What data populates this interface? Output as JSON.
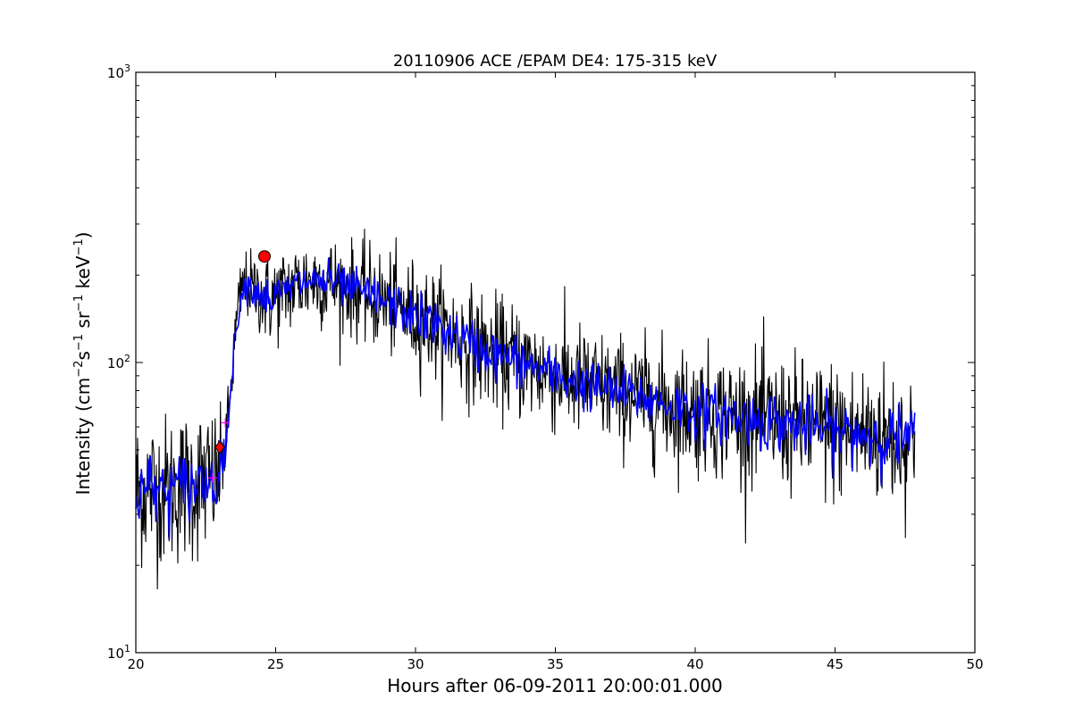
{
  "chart_data": {
    "type": "line",
    "title": "20110906 ACE /EPAM DE4: 175-315 keV",
    "xlabel": "Hours after 06-09-2011 20:00:01.000",
    "ylabel": {
      "prefix": "Intensity (cm",
      "parts": [
        {
          "base": "",
          "sup": "−2"
        },
        {
          "base": "s",
          "sup": "−1"
        },
        {
          "base": " sr",
          "sup": "−1"
        },
        {
          "base": " keV",
          "sup": "−1"
        }
      ],
      "suffix": ")"
    },
    "xlim": [
      20,
      50
    ],
    "ylim": [
      10,
      1000
    ],
    "yscale": "log",
    "grid": false,
    "x_ticks": [
      20,
      25,
      30,
      35,
      40,
      45,
      50
    ],
    "x_tick_labels": [
      "20",
      "25",
      "30",
      "35",
      "40",
      "45",
      "50"
    ],
    "y_major_ticks": [
      {
        "value": 10,
        "base": "10",
        "exp": "1"
      },
      {
        "value": 100,
        "base": "10",
        "exp": "2"
      },
      {
        "value": 1000,
        "base": "10",
        "exp": "3"
      }
    ],
    "series": [
      {
        "role": "raw",
        "color": "#000000",
        "x_range": [
          20.0,
          47.85
        ],
        "x": [
          20.0,
          20.5,
          21.0,
          21.5,
          22.0,
          22.5,
          22.9,
          23.0,
          23.1,
          23.2,
          23.3,
          23.4,
          23.5,
          23.6,
          23.7,
          23.8,
          24.0,
          24.2,
          24.4,
          24.6,
          24.8,
          25.0,
          25.5,
          26.0,
          26.5,
          27.0,
          27.5,
          28.0,
          28.5,
          29.0,
          29.5,
          30.0,
          30.5,
          31.0,
          31.5,
          32.0,
          32.5,
          33.0,
          33.5,
          34.0,
          34.5,
          35.0,
          35.5,
          36.0,
          36.5,
          37.0,
          37.5,
          38.0,
          38.5,
          39.0,
          39.5,
          40.0,
          40.5,
          41.0,
          41.5,
          42.0,
          42.5,
          43.0,
          43.5,
          44.0,
          44.5,
          45.0,
          45.5,
          46.0,
          46.5,
          47.0,
          47.5,
          47.85
        ],
        "y": [
          36,
          37,
          36,
          37,
          38,
          39,
          40,
          42,
          46,
          52,
          62,
          80,
          105,
          135,
          160,
          180,
          185,
          180,
          175,
          168,
          165,
          168,
          180,
          190,
          192,
          188,
          182,
          175,
          168,
          160,
          152,
          145,
          138,
          130,
          122,
          115,
          110,
          105,
          102,
          98,
          94,
          90,
          87,
          85,
          82,
          80,
          78,
          76,
          74,
          72,
          70,
          68,
          67,
          66,
          65,
          64,
          63,
          62,
          61,
          60,
          59,
          58,
          57,
          57,
          56,
          55,
          55,
          55
        ],
        "scatter_factor": [
          1.35,
          1.35,
          1.35,
          1.35,
          1.35,
          1.35,
          1.3,
          1.25,
          1.2,
          1.15,
          1.15,
          1.15,
          1.15,
          1.15,
          1.15,
          1.15,
          1.15,
          1.15,
          1.18,
          1.2,
          1.2,
          1.2,
          1.2,
          1.2,
          1.2,
          1.2,
          1.2,
          1.2,
          1.22,
          1.22,
          1.22,
          1.24,
          1.24,
          1.24,
          1.24,
          1.25,
          1.25,
          1.25,
          1.25,
          1.25,
          1.25,
          1.25,
          1.25,
          1.25,
          1.25,
          1.25,
          1.25,
          1.25,
          1.27,
          1.27,
          1.27,
          1.28,
          1.28,
          1.28,
          1.28,
          1.28,
          1.3,
          1.3,
          1.3,
          1.3,
          1.32,
          1.32,
          1.32,
          1.32,
          1.32,
          1.32,
          1.32,
          1.32
        ],
        "samples": 1336
      },
      {
        "role": "smoothed",
        "color": "#0000ff",
        "x_range": [
          20.0,
          47.85
        ],
        "scatter_factor_ratio": 0.45,
        "samples": 700
      }
    ],
    "markers": [
      {
        "name": "onset",
        "shape": "diamond",
        "color": "#ff0000",
        "x": 23.0,
        "y": 51
      },
      {
        "name": "peak",
        "shape": "circle",
        "color": "#ff0000",
        "x": 24.6,
        "y": 232
      }
    ],
    "small_markers": [
      {
        "shape": "plus",
        "color": "#ff00ff",
        "x": 22.75,
        "y": 40
      },
      {
        "shape": "plus",
        "color": "#ff00ff",
        "x": 23.2,
        "y": 62
      }
    ]
  }
}
